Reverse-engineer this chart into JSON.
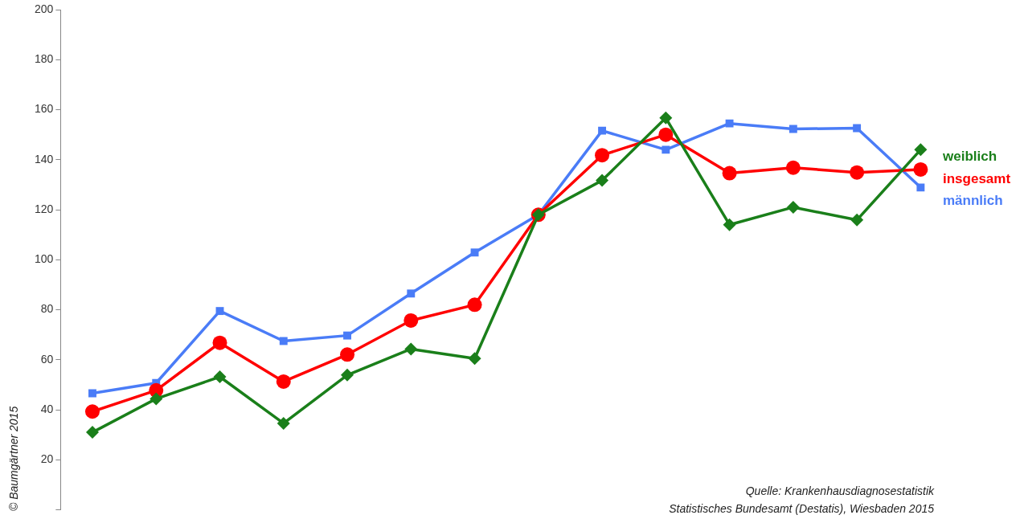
{
  "chart_data": {
    "type": "line",
    "categories": [
      null,
      null,
      null,
      null,
      null,
      null,
      null,
      null,
      null,
      null,
      null,
      null,
      null,
      null
    ],
    "ylim": [
      0,
      200
    ],
    "yticks": [
      {
        "value": 0,
        "label": null
      },
      20,
      40,
      60,
      80,
      100,
      120,
      140,
      160,
      180,
      200
    ],
    "grid": false,
    "legend": false,
    "series": [
      {
        "name": "männlich",
        "color": "#4a7cf7",
        "marker": "square",
        "values": [
          46.6,
          50.7,
          79.5,
          67.5,
          69.7,
          86.5,
          102.9,
          118,
          151.6,
          144,
          154.5,
          152.3,
          152.6,
          128.9
        ]
      },
      {
        "name": "insgesamt",
        "color": "#ff0000",
        "marker": "circle",
        "values": [
          39.3,
          47.8,
          66.8,
          51.3,
          62.1,
          75.7,
          82,
          118,
          141.8,
          150,
          134.6,
          136.8,
          134.9,
          136.1
        ]
      },
      {
        "name": "weiblich",
        "color": "#1a7f1a",
        "marker": "diamond",
        "values": [
          31,
          44.4,
          53.2,
          34.6,
          53.9,
          64.3,
          60.5,
          118,
          131.7,
          156.7,
          114,
          121,
          115.9,
          144
        ]
      }
    ],
    "annotations": [
      "Quelle: Krankenhausdiagnosestatistik",
      "Statistisches Bundesamt (Destatis), Wiesbaden 2015",
      "© Baumgärtner 2015"
    ]
  }
}
